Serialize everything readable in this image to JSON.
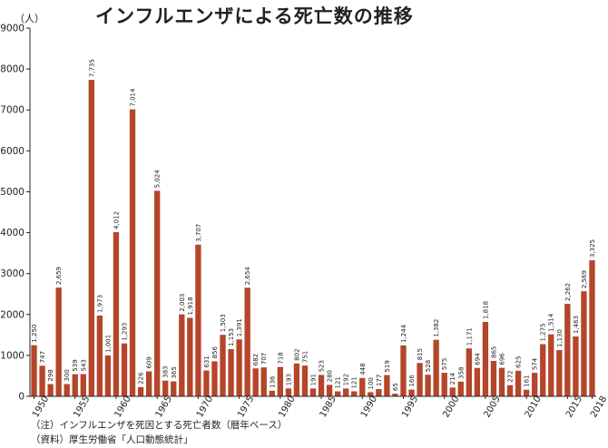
{
  "chart_data": {
    "type": "bar",
    "title": "インフルエンザによる死亡数の推移",
    "unit_label": "（人）",
    "ylim": [
      0,
      9000
    ],
    "yticks": [
      0,
      1000,
      2000,
      3000,
      4000,
      5000,
      6000,
      7000,
      8000,
      9000
    ],
    "xtick_labels": [
      "1950",
      "1955",
      "1960",
      "1965",
      "1970",
      "1975",
      "1980",
      "1985",
      "1990",
      "1995",
      "2000",
      "2005",
      "2010",
      "2015",
      "2018"
    ],
    "categories": [
      "1950",
      "1951",
      "1952",
      "1953",
      "1954",
      "1955",
      "1956",
      "1957",
      "1958",
      "1959",
      "1960",
      "1961",
      "1962",
      "1963",
      "1964",
      "1965",
      "1966",
      "1967",
      "1968",
      "1969",
      "1970",
      "1971",
      "1972",
      "1973",
      "1974",
      "1975",
      "1976",
      "1977",
      "1978",
      "1979",
      "1980",
      "1981",
      "1982",
      "1983",
      "1984",
      "1985",
      "1986",
      "1987",
      "1988",
      "1989",
      "1990",
      "1991",
      "1992",
      "1993",
      "1994",
      "1995",
      "1996",
      "1997",
      "1998",
      "1999",
      "2000",
      "2001",
      "2002",
      "2003",
      "2004",
      "2005",
      "2006",
      "2007",
      "2008",
      "2009",
      "2010",
      "2011",
      "2012",
      "2013",
      "2014",
      "2015",
      "2016",
      "2017",
      "2018"
    ],
    "values": [
      1250,
      747,
      298,
      2659,
      300,
      539,
      543,
      7735,
      1973,
      1001,
      4012,
      1293,
      7014,
      226,
      609,
      5024,
      383,
      365,
      2003,
      1918,
      3707,
      631,
      856,
      1503,
      1153,
      1391,
      2654,
      682,
      707,
      136,
      718,
      193,
      802,
      751,
      191,
      523,
      280,
      121,
      192,
      121,
      448,
      100,
      177,
      519,
      65,
      1244,
      166,
      815,
      528,
      1382,
      575,
      214,
      358,
      1171,
      694,
      1818,
      865,
      696,
      272,
      625,
      161,
      574,
      1275,
      1514,
      1130,
      2262,
      1463,
      2569,
      3325
    ],
    "bar_color": "#b5452b",
    "axis_color": "#222222"
  },
  "notes": [
    "（注）インフルエンザを死因とする死亡者数（暦年ベース）",
    "（資料）厚生労働省「人口動態統計」"
  ]
}
